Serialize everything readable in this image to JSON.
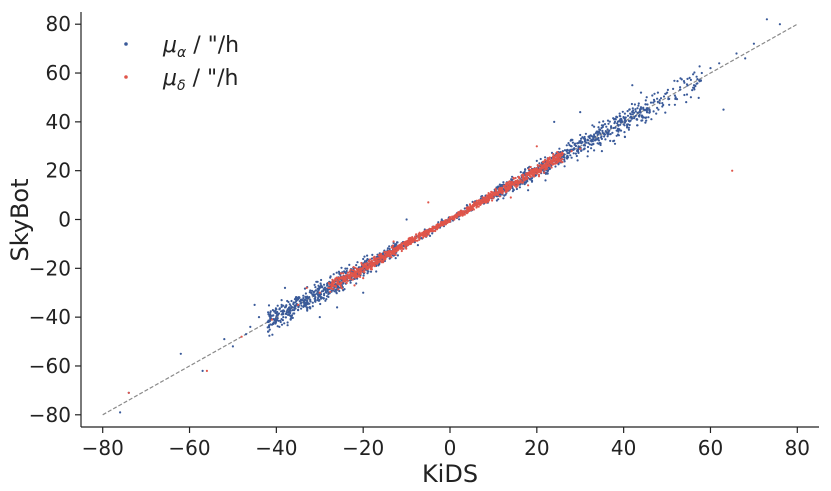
{
  "chart_data": {
    "type": "scatter",
    "xlabel": "KiDS",
    "ylabel": "SkyBot",
    "xlim": [
      -85,
      85
    ],
    "ylim": [
      -85,
      85
    ],
    "xticks": [
      -80,
      -60,
      -40,
      -20,
      0,
      20,
      40,
      60,
      80
    ],
    "yticks": [
      -80,
      -60,
      -40,
      -20,
      0,
      20,
      40,
      60,
      80
    ],
    "grid": false,
    "legend_placement": "top-left",
    "reference_line": {
      "x": [
        -80,
        80
      ],
      "y": [
        -80,
        80
      ],
      "style": "dashed",
      "color": "#8a8a8a"
    },
    "series": [
      {
        "name": "μ_α / \"/h",
        "legend_symbol": "μ",
        "legend_subscript": "α",
        "legend_suffix": " / \"/h",
        "color": "#3a5a99",
        "points": [
          [
            -76,
            -79
          ],
          [
            -74,
            -71
          ],
          [
            -62,
            -55
          ],
          [
            -57,
            -62
          ],
          [
            -52,
            -49
          ],
          [
            -50,
            -52
          ],
          [
            -47,
            -47
          ],
          [
            -44,
            -40
          ],
          [
            -46,
            -44
          ],
          [
            -42,
            -42
          ],
          [
            -40,
            -38
          ],
          [
            -39,
            -42
          ],
          [
            -38,
            -36
          ],
          [
            -37,
            -39
          ],
          [
            -36,
            -34
          ],
          [
            -35,
            -37
          ],
          [
            -34,
            -33
          ],
          [
            -33,
            -36
          ],
          [
            -32,
            -30
          ],
          [
            -31,
            -33
          ],
          [
            -30,
            -28
          ],
          [
            -29,
            -31
          ],
          [
            -28,
            -26
          ],
          [
            -27,
            -29
          ],
          [
            -26,
            -24
          ],
          [
            -25,
            -27
          ],
          [
            -24,
            -22
          ],
          [
            -23,
            -25
          ],
          [
            -22,
            -20
          ],
          [
            -21,
            -23
          ],
          [
            -20,
            -18
          ],
          [
            -19,
            -21
          ],
          [
            -18,
            -16
          ],
          [
            -17,
            -19
          ],
          [
            -16,
            -15
          ],
          [
            -15,
            -17
          ],
          [
            -14,
            -13
          ],
          [
            -12,
            -11
          ],
          [
            -10,
            -9
          ],
          [
            -8,
            -7
          ],
          [
            -6,
            -5
          ],
          [
            -4,
            -3
          ],
          [
            -2,
            -1
          ],
          [
            0,
            0
          ],
          [
            2,
            2
          ],
          [
            4,
            3
          ],
          [
            6,
            6
          ],
          [
            8,
            7
          ],
          [
            10,
            11
          ],
          [
            12,
            11
          ],
          [
            14,
            15
          ],
          [
            16,
            15
          ],
          [
            18,
            19
          ],
          [
            20,
            21
          ],
          [
            21,
            19
          ],
          [
            22,
            24
          ],
          [
            23,
            21
          ],
          [
            24,
            26
          ],
          [
            25,
            23
          ],
          [
            26,
            28
          ],
          [
            27,
            25
          ],
          [
            28,
            30
          ],
          [
            29,
            27
          ],
          [
            30,
            32
          ],
          [
            31,
            29
          ],
          [
            32,
            34
          ],
          [
            33,
            31
          ],
          [
            34,
            36
          ],
          [
            35,
            33
          ],
          [
            36,
            38
          ],
          [
            37,
            35
          ],
          [
            38,
            40
          ],
          [
            39,
            37
          ],
          [
            40,
            42
          ],
          [
            41,
            39
          ],
          [
            42,
            44
          ],
          [
            43,
            41
          ],
          [
            44,
            46
          ],
          [
            46,
            44
          ],
          [
            47,
            49
          ],
          [
            48,
            45
          ],
          [
            50,
            52
          ],
          [
            52,
            50
          ],
          [
            54,
            56
          ],
          [
            56,
            54
          ],
          [
            58,
            60
          ],
          [
            60,
            62
          ],
          [
            62,
            64
          ],
          [
            66,
            68
          ],
          [
            68,
            66
          ],
          [
            70,
            72
          ],
          [
            73,
            82
          ],
          [
            76,
            80
          ],
          [
            63,
            45
          ],
          [
            42,
            55
          ],
          [
            44,
            52
          ],
          [
            -10,
            0
          ],
          [
            -38,
            -28
          ],
          [
            -45,
            -35
          ],
          [
            24,
            40
          ],
          [
            30,
            44
          ],
          [
            35,
            28
          ],
          [
            38,
            31
          ],
          [
            -30,
            -40
          ],
          [
            -26,
            -36
          ],
          [
            -20,
            -30
          ],
          [
            18,
            12
          ],
          [
            22,
            16
          ]
        ]
      },
      {
        "name": "μ_δ / \"/h",
        "legend_symbol": "μ",
        "legend_subscript": "δ",
        "legend_suffix": " / \"/h",
        "color": "#e0554a",
        "points": [
          [
            -74,
            -71
          ],
          [
            -56,
            -62
          ],
          [
            -48,
            -48
          ],
          [
            -41,
            -41
          ],
          [
            -35,
            -35
          ],
          [
            -30,
            -30
          ],
          [
            -28,
            -28
          ],
          [
            -26,
            -25
          ],
          [
            -25,
            -26
          ],
          [
            -24,
            -23
          ],
          [
            -23,
            -24
          ],
          [
            -22,
            -21
          ],
          [
            -21,
            -22
          ],
          [
            -20,
            -19
          ],
          [
            -19,
            -20
          ],
          [
            -18,
            -17
          ],
          [
            -17,
            -18
          ],
          [
            -16,
            -15
          ],
          [
            -15,
            -16
          ],
          [
            -14,
            -13
          ],
          [
            -13,
            -14
          ],
          [
            -12,
            -11
          ],
          [
            -11,
            -12
          ],
          [
            -10,
            -9
          ],
          [
            -9,
            -10
          ],
          [
            -8,
            -7
          ],
          [
            -7,
            -8
          ],
          [
            -6,
            -5
          ],
          [
            -5,
            -6
          ],
          [
            -4,
            -3
          ],
          [
            -3,
            -4
          ],
          [
            -2,
            -1
          ],
          [
            -1,
            -2
          ],
          [
            0,
            1
          ],
          [
            1,
            0
          ],
          [
            2,
            3
          ],
          [
            3,
            2
          ],
          [
            4,
            5
          ],
          [
            5,
            4
          ],
          [
            6,
            7
          ],
          [
            7,
            6
          ],
          [
            8,
            9
          ],
          [
            9,
            8
          ],
          [
            10,
            11
          ],
          [
            11,
            10
          ],
          [
            12,
            13
          ],
          [
            13,
            12
          ],
          [
            14,
            15
          ],
          [
            15,
            14
          ],
          [
            16,
            17
          ],
          [
            17,
            16
          ],
          [
            18,
            19
          ],
          [
            19,
            18
          ],
          [
            20,
            21
          ],
          [
            21,
            20
          ],
          [
            22,
            23
          ],
          [
            23,
            22
          ],
          [
            24,
            25
          ],
          [
            25,
            24
          ],
          [
            26,
            27
          ],
          [
            28,
            28
          ],
          [
            30,
            29
          ],
          [
            -13,
            -9
          ],
          [
            -5,
            7
          ],
          [
            -20,
            -24
          ],
          [
            -22,
            -27
          ],
          [
            14,
            9
          ],
          [
            18,
            14
          ],
          [
            65,
            20
          ],
          [
            20,
            30
          ],
          [
            -33,
            -28
          ]
        ]
      }
    ]
  }
}
